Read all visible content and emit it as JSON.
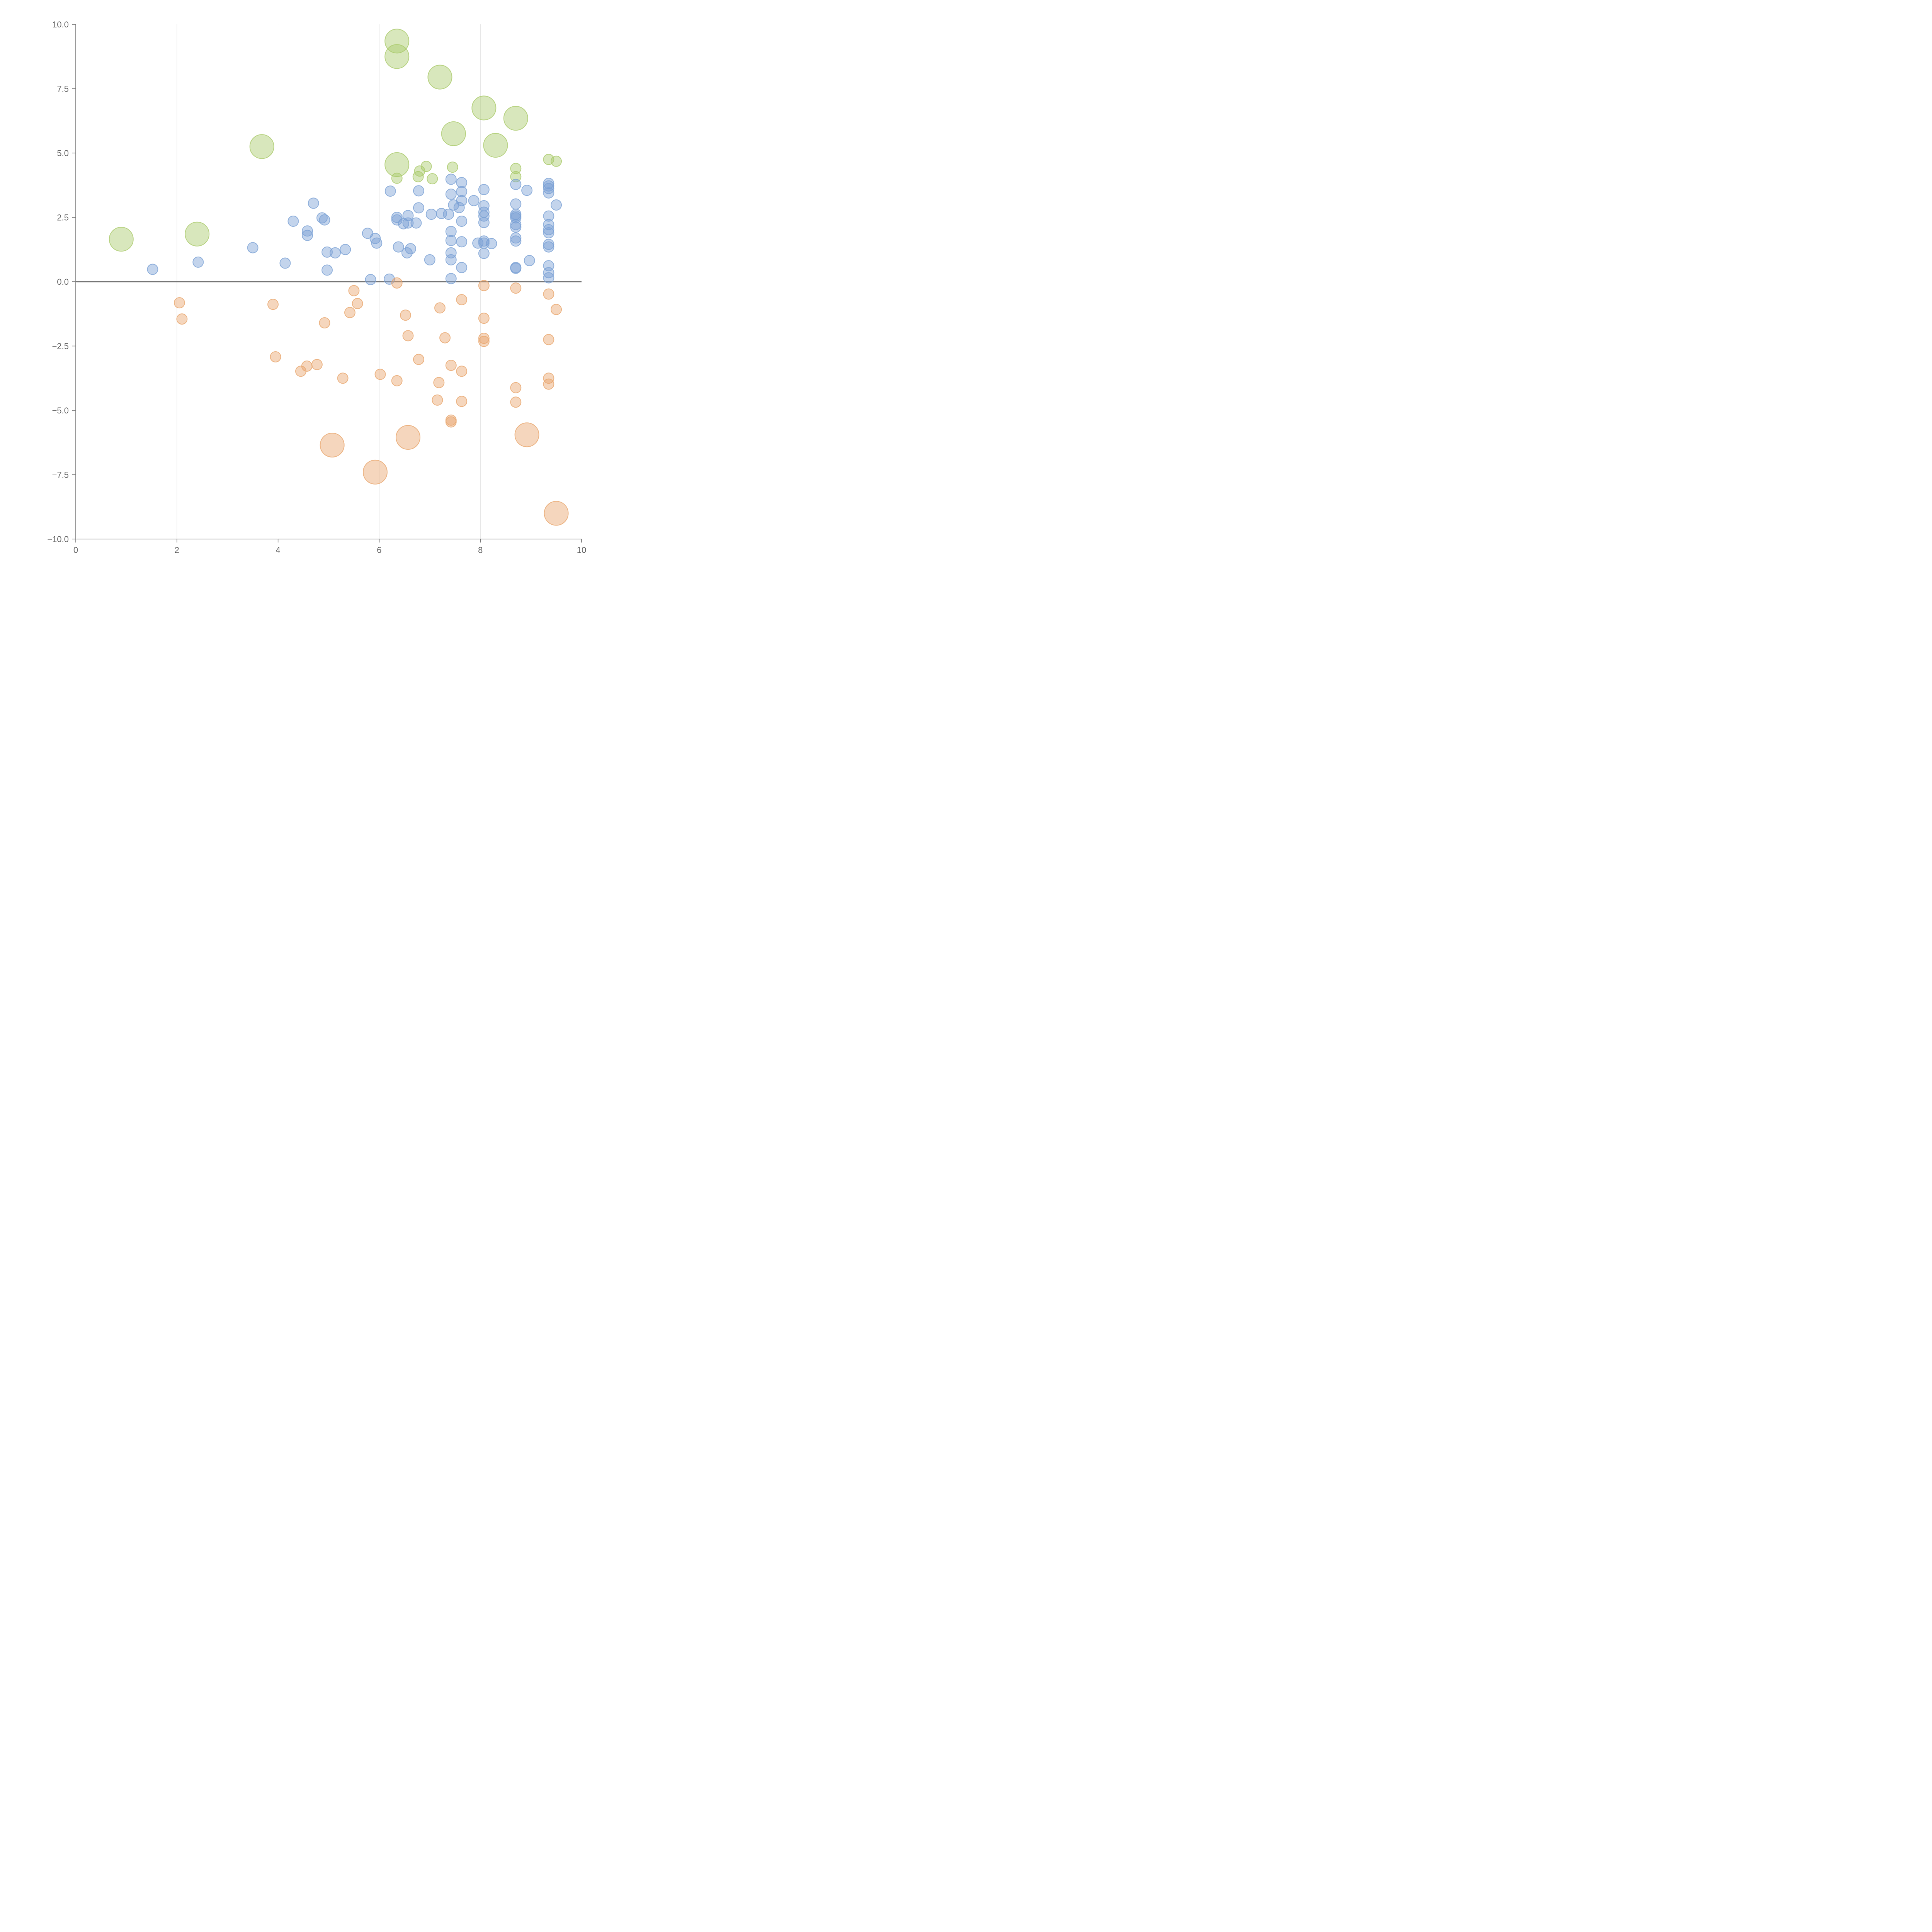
{
  "chart_data": {
    "type": "scatter",
    "title": "",
    "xlabel": "",
    "ylabel": "",
    "xlim": [
      0,
      10
    ],
    "ylim": [
      -10,
      10
    ],
    "x_ticks": [
      0,
      2,
      4,
      6,
      8,
      10
    ],
    "x_tick_labels": [
      "0",
      "2",
      "4",
      "6",
      "8",
      "10"
    ],
    "y_ticks": [
      10,
      7.5,
      5,
      2.5,
      0,
      -2.5,
      -5,
      -7.5,
      -10
    ],
    "y_tick_labels": [
      "10.0",
      "7.5",
      "5.0",
      "2.5",
      "0.0",
      "−2.5",
      "−5.0",
      "−7.5",
      "−10.0"
    ],
    "grid": "vertical",
    "zero_line": 0,
    "series": [
      {
        "name": "green",
        "color": "#a9c96a",
        "points": [
          [
            6.35,
            9.35,
            2.3
          ],
          [
            6.35,
            8.75,
            2.3
          ],
          [
            7.2,
            7.95,
            2.3
          ],
          [
            8.07,
            6.75,
            2.3
          ],
          [
            8.7,
            6.35,
            2.3
          ],
          [
            7.47,
            5.75,
            2.3
          ],
          [
            8.3,
            5.3,
            2.3
          ],
          [
            3.68,
            5.25,
            2.3
          ],
          [
            6.35,
            4.55,
            2.3
          ],
          [
            2.4,
            1.85,
            2.3
          ],
          [
            0.9,
            1.65,
            2.3
          ],
          [
            9.35,
            4.75,
            1
          ],
          [
            9.5,
            4.68,
            1
          ],
          [
            7.45,
            4.45,
            1
          ],
          [
            6.93,
            4.48,
            1
          ],
          [
            8.7,
            4.4,
            1
          ],
          [
            6.8,
            4.3,
            1
          ],
          [
            6.77,
            4.08,
            1
          ],
          [
            8.7,
            4.08,
            1
          ],
          [
            6.35,
            4.02,
            1
          ],
          [
            7.05,
            4.0,
            1
          ]
        ]
      },
      {
        "name": "blue",
        "color": "#7aa0d4",
        "points": [
          [
            1.52,
            0.48,
            1
          ],
          [
            2.42,
            0.76,
            1
          ],
          [
            3.5,
            1.32,
            1
          ],
          [
            4.14,
            0.72,
            1
          ],
          [
            4.3,
            2.35,
            1
          ],
          [
            4.58,
            1.97,
            1
          ],
          [
            4.58,
            1.8,
            1
          ],
          [
            4.7,
            3.05,
            1
          ],
          [
            4.87,
            2.48,
            1
          ],
          [
            4.92,
            2.4,
            1
          ],
          [
            4.97,
            1.15,
            1
          ],
          [
            4.97,
            0.45,
            1
          ],
          [
            5.13,
            1.12,
            1
          ],
          [
            5.33,
            1.25,
            1
          ],
          [
            5.77,
            1.88,
            1
          ],
          [
            5.92,
            1.68,
            1
          ],
          [
            5.95,
            1.5,
            1
          ],
          [
            5.83,
            0.08,
            1
          ],
          [
            6.2,
            0.1,
            1
          ],
          [
            6.22,
            3.52,
            1
          ],
          [
            6.35,
            2.5,
            1
          ],
          [
            6.35,
            2.4,
            1
          ],
          [
            6.38,
            1.35,
            1
          ],
          [
            6.48,
            2.25,
            1
          ],
          [
            6.57,
            2.57,
            1
          ],
          [
            6.57,
            2.28,
            1
          ],
          [
            6.55,
            1.12,
            1
          ],
          [
            6.62,
            1.28,
            1
          ],
          [
            6.73,
            2.28,
            1
          ],
          [
            6.78,
            2.87,
            1
          ],
          [
            6.78,
            3.53,
            1
          ],
          [
            7.0,
            0.85,
            1
          ],
          [
            7.03,
            2.62,
            1
          ],
          [
            7.23,
            2.65,
            1
          ],
          [
            7.37,
            2.62,
            1
          ],
          [
            7.42,
            3.98,
            1
          ],
          [
            7.42,
            3.4,
            1
          ],
          [
            7.47,
            2.98,
            1
          ],
          [
            7.42,
            1.95,
            1
          ],
          [
            7.42,
            1.6,
            1
          ],
          [
            7.42,
            1.12,
            1
          ],
          [
            7.42,
            0.85,
            1
          ],
          [
            7.42,
            0.12,
            1
          ],
          [
            7.63,
            3.85,
            1
          ],
          [
            7.63,
            3.5,
            1
          ],
          [
            7.63,
            3.15,
            1
          ],
          [
            7.58,
            2.88,
            1
          ],
          [
            7.63,
            2.35,
            1
          ],
          [
            7.63,
            1.55,
            1
          ],
          [
            7.63,
            0.55,
            1
          ],
          [
            7.87,
            3.15,
            1
          ],
          [
            7.95,
            1.5,
            1
          ],
          [
            8.07,
            3.58,
            1
          ],
          [
            8.07,
            2.95,
            1
          ],
          [
            8.07,
            2.7,
            1
          ],
          [
            8.07,
            2.55,
            1
          ],
          [
            8.07,
            2.3,
            1
          ],
          [
            8.07,
            1.58,
            1
          ],
          [
            8.07,
            1.5,
            1
          ],
          [
            8.07,
            1.1,
            1
          ],
          [
            8.22,
            1.48,
            1
          ],
          [
            8.7,
            3.78,
            1
          ],
          [
            8.7,
            3.02,
            1
          ],
          [
            8.7,
            2.62,
            1
          ],
          [
            8.7,
            2.55,
            1
          ],
          [
            8.7,
            2.48,
            1
          ],
          [
            8.7,
            2.22,
            1
          ],
          [
            8.7,
            2.12,
            1
          ],
          [
            8.7,
            1.7,
            1
          ],
          [
            8.7,
            1.58,
            1
          ],
          [
            8.7,
            0.55,
            1
          ],
          [
            8.7,
            0.52,
            1
          ],
          [
            8.92,
            3.55,
            1
          ],
          [
            8.97,
            0.82,
            1
          ],
          [
            9.35,
            3.82,
            1
          ],
          [
            9.35,
            3.72,
            1
          ],
          [
            9.35,
            3.62,
            1
          ],
          [
            9.35,
            3.45,
            1
          ],
          [
            9.35,
            2.55,
            1
          ],
          [
            9.35,
            2.22,
            1
          ],
          [
            9.35,
            2.02,
            1
          ],
          [
            9.35,
            1.9,
            1
          ],
          [
            9.35,
            1.45,
            1
          ],
          [
            9.35,
            1.35,
            1
          ],
          [
            9.35,
            0.62,
            1
          ],
          [
            9.35,
            0.35,
            1
          ],
          [
            9.35,
            0.15,
            1
          ],
          [
            9.5,
            2.98,
            1
          ]
        ]
      },
      {
        "name": "orange",
        "color": "#e8a56c",
        "points": [
          [
            2.05,
            -0.82,
            1
          ],
          [
            2.1,
            -1.45,
            1
          ],
          [
            3.9,
            -0.88,
            1
          ],
          [
            3.95,
            -2.92,
            1
          ],
          [
            4.45,
            -3.48,
            1
          ],
          [
            4.57,
            -3.28,
            1
          ],
          [
            4.77,
            -3.22,
            1
          ],
          [
            4.92,
            -1.6,
            1
          ],
          [
            5.28,
            -3.75,
            1
          ],
          [
            5.42,
            -1.2,
            1
          ],
          [
            5.5,
            -0.35,
            1
          ],
          [
            5.57,
            -0.85,
            1
          ],
          [
            6.02,
            -3.6,
            1
          ],
          [
            6.35,
            -0.05,
            1
          ],
          [
            6.35,
            -3.85,
            1
          ],
          [
            6.52,
            -1.3,
            1
          ],
          [
            6.57,
            -2.1,
            1
          ],
          [
            6.78,
            -3.02,
            1
          ],
          [
            7.15,
            -4.6,
            1
          ],
          [
            7.18,
            -3.92,
            1
          ],
          [
            7.2,
            -1.02,
            1
          ],
          [
            7.3,
            -2.18,
            1
          ],
          [
            7.42,
            -3.25,
            1
          ],
          [
            7.42,
            -5.38,
            1
          ],
          [
            7.42,
            -5.45,
            1
          ],
          [
            7.63,
            -0.7,
            1
          ],
          [
            7.63,
            -3.48,
            1
          ],
          [
            7.63,
            -4.65,
            1
          ],
          [
            8.07,
            -0.15,
            1
          ],
          [
            8.07,
            -1.42,
            1
          ],
          [
            8.07,
            -2.2,
            1
          ],
          [
            8.07,
            -2.32,
            1
          ],
          [
            8.7,
            -0.25,
            1
          ],
          [
            8.7,
            -4.12,
            1
          ],
          [
            8.7,
            -4.68,
            1
          ],
          [
            9.35,
            -0.48,
            1
          ],
          [
            9.35,
            -2.25,
            1
          ],
          [
            9.35,
            -3.75,
            1
          ],
          [
            9.35,
            -3.98,
            1
          ],
          [
            9.5,
            -1.08,
            1
          ],
          [
            5.07,
            -6.35,
            2.3
          ],
          [
            6.57,
            -6.05,
            2.3
          ],
          [
            5.92,
            -7.4,
            2.3
          ],
          [
            8.92,
            -5.95,
            2.3
          ],
          [
            9.5,
            -9.0,
            2.3
          ]
        ]
      }
    ]
  }
}
